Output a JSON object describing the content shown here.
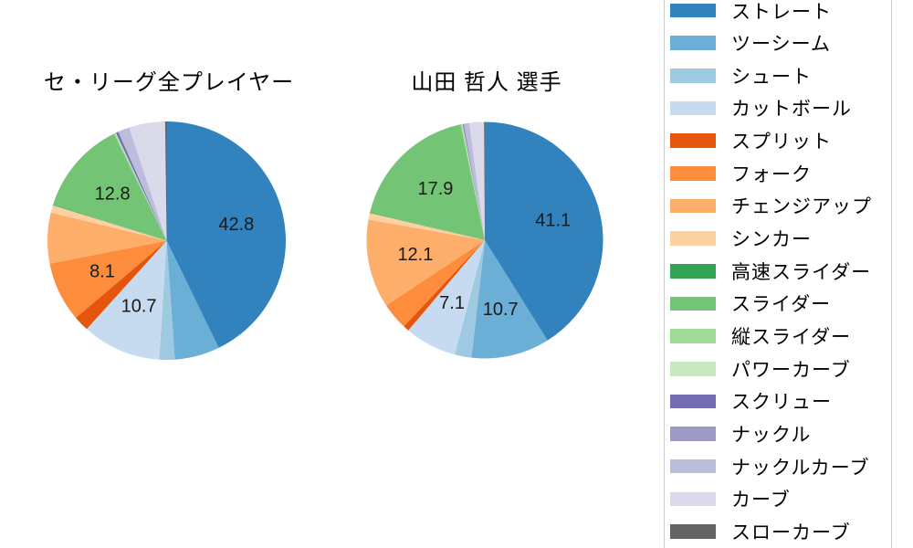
{
  "figure": {
    "background_color": "#ffffff",
    "legend_border_color": "#cccccc",
    "label_text_color": "#1a1a1a"
  },
  "legend": {
    "items": [
      {
        "label": "ストレート",
        "color": "#3182bd"
      },
      {
        "label": "ツーシーム",
        "color": "#6baed6"
      },
      {
        "label": "シュート",
        "color": "#9ecae1"
      },
      {
        "label": "カットボール",
        "color": "#c6dbef"
      },
      {
        "label": "スプリット",
        "color": "#e6550d"
      },
      {
        "label": "フォーク",
        "color": "#fd8d3c"
      },
      {
        "label": "チェンジアップ",
        "color": "#fdae6b"
      },
      {
        "label": "シンカー",
        "color": "#fdd0a2"
      },
      {
        "label": "高速スライダー",
        "color": "#31a354"
      },
      {
        "label": "スライダー",
        "color": "#74c476"
      },
      {
        "label": "縦スライダー",
        "color": "#a1d99b"
      },
      {
        "label": "パワーカーブ",
        "color": "#c7e9c0"
      },
      {
        "label": "スクリュー",
        "color": "#756bb1"
      },
      {
        "label": "ナックル",
        "color": "#9e9ac8"
      },
      {
        "label": "ナックルカーブ",
        "color": "#bcbddc"
      },
      {
        "label": "カーブ",
        "color": "#dadaeb"
      },
      {
        "label": "スローカーブ",
        "color": "#636363"
      }
    ],
    "position": "right"
  },
  "chart_data": [
    {
      "type": "pie",
      "title": "セ・リーグ全プレイヤー",
      "start_angle": "12-oclock",
      "direction": "clockwise",
      "label_threshold": 7.0,
      "pct_distance": 0.6,
      "categories": [
        "ストレート",
        "ツーシーム",
        "シュート",
        "カットボール",
        "スプリット",
        "フォーク",
        "チェンジアップ",
        "シンカー",
        "高速スライダー",
        "スライダー",
        "縦スライダー",
        "パワーカーブ",
        "スクリュー",
        "ナックル",
        "ナックルカーブ",
        "カーブ",
        "スローカーブ"
      ],
      "values": [
        42.8,
        6.1,
        2.1,
        10.7,
        2.1,
        8.1,
        6.9,
        1.0,
        0.1,
        12.8,
        0.2,
        0.1,
        0.3,
        0.1,
        1.5,
        4.9,
        0.2
      ],
      "colors": [
        "#3182bd",
        "#6baed6",
        "#9ecae1",
        "#c6dbef",
        "#e6550d",
        "#fd8d3c",
        "#fdae6b",
        "#fdd0a2",
        "#31a354",
        "#74c476",
        "#a1d99b",
        "#c7e9c0",
        "#756bb1",
        "#9e9ac8",
        "#bcbddc",
        "#dadaeb",
        "#636363"
      ],
      "shown_labels": [
        "42.8",
        "10.7",
        "8.1",
        "12.8"
      ]
    },
    {
      "type": "pie",
      "title": "山田 哲人 選手",
      "start_angle": "12-oclock",
      "direction": "clockwise",
      "label_threshold": 7.0,
      "pct_distance": 0.6,
      "categories": [
        "ストレート",
        "ツーシーム",
        "シュート",
        "カットボール",
        "スプリット",
        "フォーク",
        "チェンジアップ",
        "シンカー",
        "高速スライダー",
        "スライダー",
        "縦スライダー",
        "パワーカーブ",
        "スクリュー",
        "ナックル",
        "ナックルカーブ",
        "カーブ",
        "スローカーブ"
      ],
      "values": [
        41.1,
        10.7,
        2.3,
        7.1,
        0.8,
        3.7,
        12.1,
        0.9,
        0.1,
        17.9,
        0.2,
        0.1,
        0.1,
        0.1,
        0.7,
        2.0,
        0.1
      ],
      "colors": [
        "#3182bd",
        "#6baed6",
        "#9ecae1",
        "#c6dbef",
        "#e6550d",
        "#fd8d3c",
        "#fdae6b",
        "#fdd0a2",
        "#31a354",
        "#74c476",
        "#a1d99b",
        "#c7e9c0",
        "#756bb1",
        "#9e9ac8",
        "#bcbddc",
        "#dadaeb",
        "#636363"
      ],
      "shown_labels": [
        "41.1",
        "10.7",
        "7.1",
        "12.1",
        "17.9"
      ]
    }
  ]
}
